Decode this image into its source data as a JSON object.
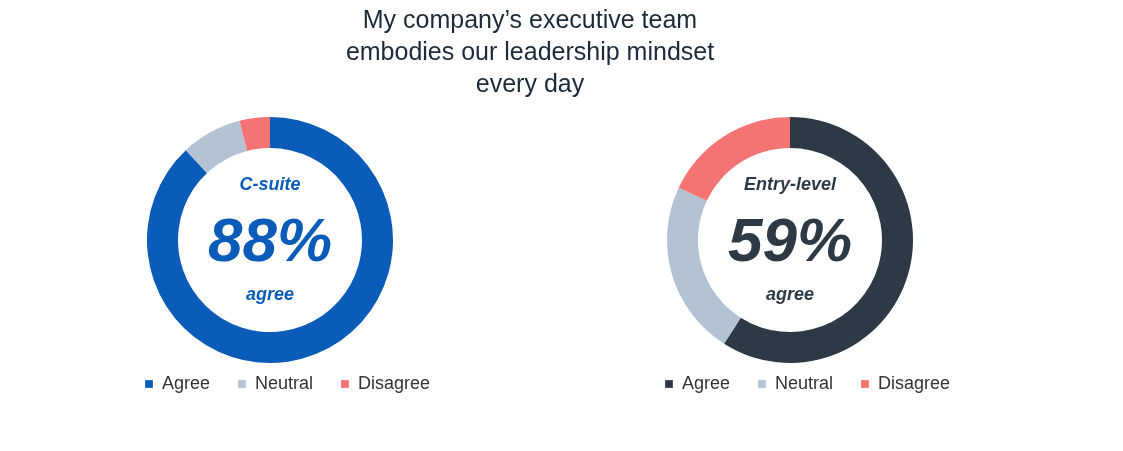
{
  "chart_data": [
    {
      "type": "donut",
      "title": "My company’s executive team embodies our leadership mindset every day",
      "categories": [
        "Agree",
        "Neutral",
        "Disagree"
      ],
      "values": [
        88,
        8,
        4
      ],
      "colors": [
        "#0a5cb8",
        "#b4c3d3",
        "#f47373"
      ],
      "annotations": [
        "C-suite",
        "88%",
        "agree"
      ],
      "legend": "bottom"
    },
    {
      "type": "donut",
      "categories": [
        "Agree",
        "Neutral",
        "Disagree"
      ],
      "values": [
        59,
        23,
        18
      ],
      "colors": [
        "#2d3a46",
        "#b4c3d3",
        "#f47373"
      ],
      "annotations": [
        "Entry-level",
        "59%",
        "agree"
      ],
      "legend": "bottom"
    }
  ]
}
